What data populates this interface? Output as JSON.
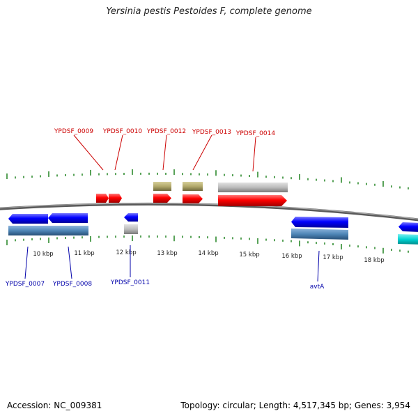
{
  "title": "Yersinia pestis Pestoides F, complete genome",
  "footer": {
    "accession": "Accession: NC_009381",
    "summary": "Topology: circular; Length: 4,517,345 bp; Genes: 3,954"
  },
  "colors": {
    "forward_gene": "#ff0000",
    "reverse_gene": "#0000ff",
    "forward_label": "#cc0000",
    "reverse_label": "#0000aa",
    "cds_forward": "#b9b9b9",
    "cds_olive": "#b2a96a",
    "cds_reverse": "#4f86b7",
    "other_reverse": "#00d4d4",
    "backbone": "#808080",
    "ticks": "#2e8b2e"
  },
  "kbp_labels": [
    "10 kbp",
    "11 kbp",
    "12 kbp",
    "13 kbp",
    "14 kbp",
    "15 kbp",
    "16 kbp",
    "17 kbp",
    "18 kbp"
  ],
  "forward_gene_labels": [
    {
      "name": "YPDSF_0009"
    },
    {
      "name": "YPDSF_0010"
    },
    {
      "name": "YPDSF_0012"
    },
    {
      "name": "YPDSF_0013"
    },
    {
      "name": "YPDSF_0014"
    }
  ],
  "reverse_gene_labels": [
    {
      "name": "YPDSF_0007"
    },
    {
      "name": "YPDSF_0008"
    },
    {
      "name": "YPDSF_0011"
    },
    {
      "name": "avtA"
    }
  ]
}
